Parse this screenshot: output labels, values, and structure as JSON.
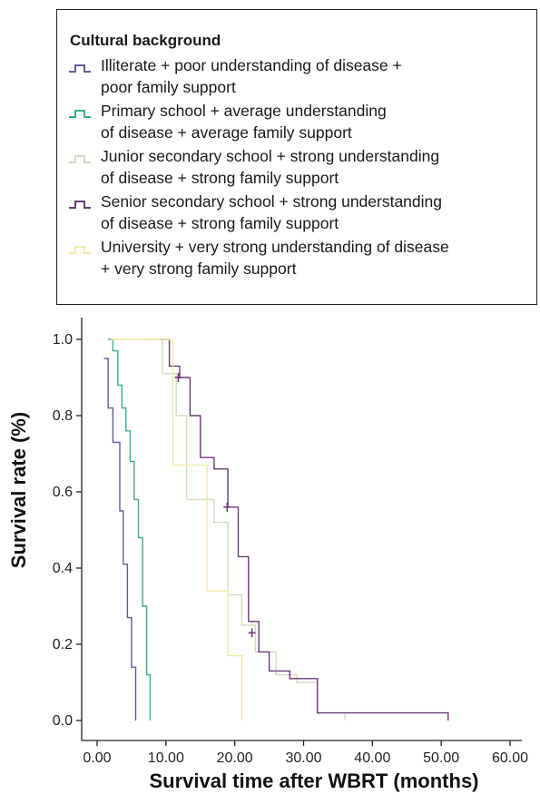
{
  "legend": {
    "title": "Cultural background",
    "entries": [
      {
        "line1": "Illiterate + poor understanding of disease +",
        "line2": "poor family support",
        "color": "#5a5f9a"
      },
      {
        "line1": "Primary school + average understanding",
        "line2": "of disease + average family support",
        "color": "#3fae86"
      },
      {
        "line1": "Junior secondary school + strong understanding",
        "line2": "of disease + strong family support",
        "color": "#d9d9c2"
      },
      {
        "line1": "Senior secondary school + strong understanding",
        "line2": "of disease + strong family support",
        "color": "#6c3a78"
      },
      {
        "line1": "University + very strong understanding of disease",
        "line2": "+ very strong family support",
        "color": "#efeaa2"
      }
    ]
  },
  "chart_data": {
    "type": "line",
    "subtype": "kaplan-meier step",
    "xlabel": "Survival time after WBRT (months)",
    "ylabel": "Survival rate (%)",
    "xlim": [
      0,
      60
    ],
    "ylim": [
      0,
      1.0
    ],
    "x_ticks": [
      "0.00",
      "10.00",
      "20.00",
      "30.00",
      "40.00",
      "50.00",
      "60.00"
    ],
    "y_ticks": [
      "0.0",
      "0.2",
      "0.4",
      "0.6",
      "0.8",
      "1.0"
    ],
    "grid": false,
    "legend_position": "top",
    "series": [
      {
        "name": "Illiterate + poor understanding of disease + poor family support",
        "color": "#5a5f9a",
        "x": [
          1.0,
          1.6,
          2.3,
          3.3,
          3.8,
          4.4,
          5.0,
          5.6
        ],
        "y": [
          0.95,
          0.82,
          0.73,
          0.55,
          0.41,
          0.27,
          0.14,
          0.0
        ]
      },
      {
        "name": "Primary school + average understanding of disease + average family support",
        "color": "#3fae86",
        "x": [
          1.6,
          2.3,
          3.0,
          3.6,
          4.2,
          4.8,
          5.4,
          6.0,
          6.6,
          7.2,
          7.7
        ],
        "y": [
          1.0,
          0.97,
          0.88,
          0.82,
          0.76,
          0.68,
          0.58,
          0.48,
          0.3,
          0.12,
          0.0
        ]
      },
      {
        "name": "Junior secondary school + strong understanding of disease + strong family support",
        "color": "#d9d9c2",
        "x": [
          7.5,
          9.5,
          11.5,
          13.0,
          15.0,
          17.0,
          19.0,
          21.0,
          23.0,
          26.0,
          29.0,
          32.0,
          36.0
        ],
        "y": [
          1.0,
          0.91,
          0.8,
          0.58,
          0.58,
          0.52,
          0.33,
          0.25,
          0.18,
          0.12,
          0.1,
          0.02,
          0.0
        ]
      },
      {
        "name": "Senior secondary school + strong understanding of disease + strong family support",
        "color": "#6c3a78",
        "x": [
          9.0,
          10.5,
          12.0,
          13.5,
          15.0,
          17.0,
          19.0,
          20.5,
          22.0,
          23.5,
          25.0,
          28.0,
          32.0,
          51.0
        ],
        "y": [
          1.0,
          0.93,
          0.9,
          0.8,
          0.69,
          0.66,
          0.56,
          0.43,
          0.26,
          0.18,
          0.13,
          0.11,
          0.02,
          0.0
        ]
      },
      {
        "name": "University + very strong understanding of disease + very strong family support",
        "color": "#efeaa2",
        "x": [
          2.0,
          11.0,
          16.0,
          19.0,
          21.0
        ],
        "y": [
          1.0,
          0.67,
          0.34,
          0.17,
          0.0
        ]
      }
    ],
    "censored_marks": [
      {
        "series": 3,
        "x": [
          11.8,
          18.9,
          22.5
        ],
        "y": [
          0.9,
          0.56,
          0.23
        ]
      }
    ]
  }
}
